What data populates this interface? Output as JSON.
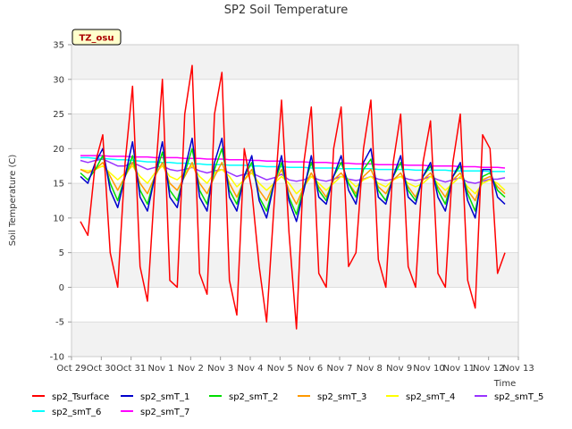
{
  "chart_data": {
    "type": "line",
    "title": "SP2 Soil Temperature",
    "xlabel": "Time",
    "ylabel": "Soil Temperature (C)",
    "ylim": [
      -10,
      35
    ],
    "yticks": [
      -10,
      -5,
      0,
      5,
      10,
      15,
      20,
      25,
      30,
      35
    ],
    "xlim": [
      0,
      15
    ],
    "xticks": [
      0,
      1,
      2,
      3,
      4,
      5,
      6,
      7,
      8,
      9,
      10,
      11,
      12,
      13,
      14,
      15
    ],
    "xtick_labels": [
      "Oct 29",
      "Oct 30",
      "Oct 31",
      "Nov 1",
      "Nov 2",
      "Nov 3",
      "Nov 4",
      "Nov 5",
      "Nov 6",
      "Nov 7",
      "Nov 8",
      "Nov 9",
      "Nov 10",
      "Nov 11",
      "Nov 12",
      "Nov 13"
    ],
    "badge": "TZ_osu",
    "legend_position": "bottom",
    "sampling": "x = days since Oct 29 00:00, every 0.25 day",
    "x": [
      0.3,
      0.55,
      0.8,
      1.05,
      1.3,
      1.55,
      1.8,
      2.05,
      2.3,
      2.55,
      2.8,
      3.05,
      3.3,
      3.55,
      3.8,
      4.05,
      4.3,
      4.55,
      4.8,
      5.05,
      5.3,
      5.55,
      5.8,
      6.05,
      6.3,
      6.55,
      6.8,
      7.05,
      7.3,
      7.55,
      7.8,
      8.05,
      8.3,
      8.55,
      8.8,
      9.05,
      9.3,
      9.55,
      9.8,
      10.05,
      10.3,
      10.55,
      10.8,
      11.05,
      11.3,
      11.55,
      11.8,
      12.05,
      12.3,
      12.55,
      12.8,
      13.05,
      13.3,
      13.55,
      13.8,
      14.05,
      14.3,
      14.55
    ],
    "series": [
      {
        "name": "sp2_Tsurface",
        "color": "#ff0000",
        "values": [
          9.5,
          7.5,
          18,
          22,
          5,
          0,
          18,
          29,
          3,
          -2,
          15,
          30,
          1,
          0,
          25,
          32,
          2,
          -1,
          25,
          31,
          1,
          -4,
          20,
          14,
          3,
          -5,
          12,
          27,
          8,
          -6,
          18,
          26,
          2,
          0,
          20,
          26,
          3,
          5,
          20,
          27,
          4,
          0,
          18,
          25,
          3,
          0,
          18,
          24,
          2,
          0,
          18,
          25,
          1,
          -3,
          22,
          20,
          2,
          5
        ]
      },
      {
        "name": "sp2_smT_1",
        "color": "#0000cc",
        "values": [
          16,
          15,
          18,
          20,
          14,
          11.5,
          16,
          21,
          13,
          11,
          16,
          21,
          13,
          11.5,
          17,
          21.5,
          13,
          11,
          18,
          21.5,
          13,
          11,
          16,
          19,
          12.5,
          10,
          15,
          19,
          12.5,
          9.5,
          14,
          19,
          13,
          12,
          16,
          19,
          14,
          12,
          18,
          20,
          13,
          12,
          16,
          19,
          13,
          12,
          16,
          18,
          13,
          11,
          16,
          18,
          12.5,
          10,
          17,
          17,
          13,
          12
        ]
      },
      {
        "name": "sp2_smT_2",
        "color": "#00dd00",
        "values": [
          16.5,
          15.5,
          17,
          19,
          15,
          12.5,
          16,
          19,
          14,
          12,
          16,
          19.5,
          14,
          12.5,
          16.5,
          20,
          14,
          12,
          17,
          20,
          14,
          12,
          16,
          18,
          13,
          11,
          15,
          18,
          13,
          10.5,
          14.5,
          18,
          14,
          12.5,
          16,
          18,
          15,
          13,
          17,
          18.5,
          14,
          12.5,
          16,
          18,
          14,
          12.5,
          16,
          17.5,
          14,
          12,
          16,
          17.5,
          13.5,
          11,
          16,
          16.5,
          14,
          13
        ]
      },
      {
        "name": "sp2_smT_3",
        "color": "#ff9900",
        "values": [
          17,
          16.5,
          17,
          18,
          16,
          14,
          16,
          18,
          15,
          13.5,
          16,
          18,
          15,
          14,
          16,
          18,
          15,
          13.5,
          16,
          18,
          15,
          13,
          15.5,
          17,
          14,
          12.5,
          15,
          17,
          14,
          12,
          14.5,
          16.5,
          14.5,
          13,
          15.5,
          16.5,
          15,
          13.5,
          16,
          17,
          14.5,
          13.5,
          15.5,
          16.5,
          14.5,
          13,
          15.5,
          16.5,
          14.5,
          13,
          15.5,
          16.5,
          14,
          12.5,
          15.5,
          16,
          14.5,
          13.5
        ]
      },
      {
        "name": "sp2_smT_4",
        "color": "#ffff00",
        "values": [
          17,
          16.8,
          17,
          17.5,
          16.5,
          15.5,
          16.5,
          17.5,
          16,
          15,
          16.5,
          17.5,
          16,
          15.5,
          16.5,
          17.5,
          16,
          15,
          16.5,
          17,
          16,
          14.5,
          15.5,
          16.5,
          15,
          14,
          15,
          16,
          15,
          13.5,
          14.5,
          16,
          15,
          14,
          15,
          16,
          15.5,
          14.5,
          15.5,
          16,
          15,
          14.5,
          15.5,
          16,
          15,
          14.5,
          15,
          16,
          15,
          14,
          15,
          16,
          14.5,
          13.5,
          15,
          15.5,
          15,
          14
        ]
      },
      {
        "name": "sp2_smT_5",
        "color": "#9933ff",
        "values": [
          18.3,
          18,
          18.3,
          18.5,
          18,
          17.5,
          17.5,
          18,
          17.5,
          17,
          17.3,
          17.5,
          17,
          16.8,
          17,
          17.3,
          16.8,
          16.5,
          16.8,
          17,
          16.5,
          16,
          16.3,
          16.5,
          16,
          15.5,
          15.8,
          16.3,
          15.5,
          15.3,
          15.5,
          16,
          15.5,
          15.3,
          15.6,
          16,
          15.6,
          15.4,
          15.6,
          16,
          15.6,
          15.4,
          15.6,
          16,
          15.6,
          15.4,
          15.6,
          16,
          15.5,
          15.2,
          15.5,
          15.8,
          15.2,
          15,
          15.3,
          15.6,
          15.6,
          15.8
        ]
      },
      {
        "name": "sp2_smT_6",
        "color": "#00ffff",
        "values": [
          18.7,
          18.7,
          18.6,
          18.6,
          18.5,
          18.4,
          18.4,
          18.3,
          18.2,
          18.1,
          18.1,
          18,
          18,
          17.9,
          17.9,
          17.8,
          17.8,
          17.7,
          17.7,
          17.7,
          17.6,
          17.6,
          17.6,
          17.5,
          17.5,
          17.4,
          17.4,
          17.4,
          17.3,
          17.3,
          17.3,
          17.2,
          17.2,
          17.2,
          17.2,
          17.1,
          17.1,
          17.1,
          17.1,
          17.1,
          17,
          17,
          17,
          17,
          17,
          16.9,
          16.9,
          16.9,
          16.9,
          16.9,
          16.8,
          16.8,
          16.8,
          16.8,
          16.8,
          16.7,
          16.7,
          16.7
        ]
      },
      {
        "name": "sp2_smT_7",
        "color": "#ff00ff",
        "values": [
          19,
          19,
          19,
          19,
          18.9,
          18.9,
          18.9,
          18.8,
          18.8,
          18.8,
          18.7,
          18.7,
          18.7,
          18.7,
          18.6,
          18.6,
          18.6,
          18.5,
          18.5,
          18.5,
          18.4,
          18.4,
          18.4,
          18.3,
          18.3,
          18.2,
          18.2,
          18.2,
          18.1,
          18.1,
          18.1,
          18,
          18,
          18,
          17.9,
          17.9,
          17.9,
          17.8,
          17.8,
          17.8,
          17.7,
          17.7,
          17.7,
          17.7,
          17.6,
          17.6,
          17.6,
          17.5,
          17.5,
          17.5,
          17.5,
          17.4,
          17.4,
          17.4,
          17.3,
          17.3,
          17.3,
          17.2
        ]
      }
    ]
  }
}
